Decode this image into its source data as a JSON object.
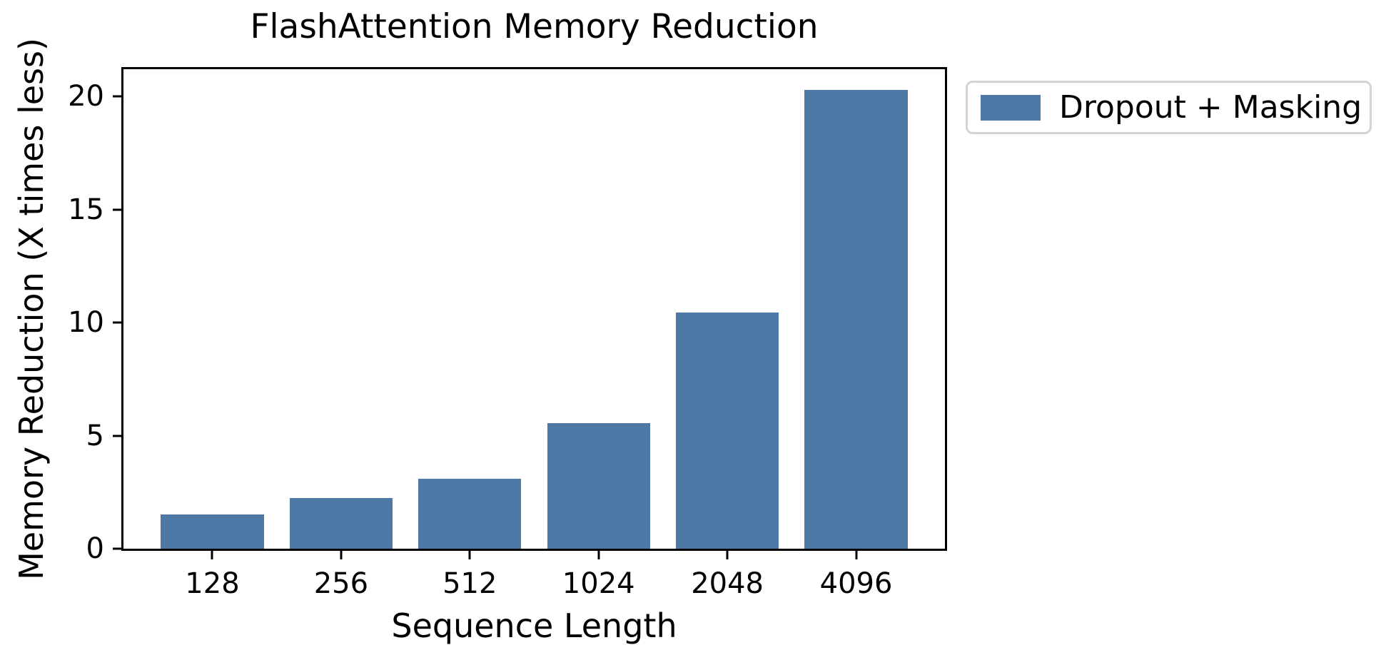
{
  "figure": {
    "background": "#ffffff",
    "text_color": "#000000",
    "axis_color": "#000000",
    "legend_border_color": "#d4d4d4"
  },
  "chart_data": {
    "type": "bar",
    "title": "FlashAttention Memory Reduction",
    "xlabel": "Sequence Length",
    "ylabel": "Memory Reduction (X times less)",
    "categories": [
      "128",
      "256",
      "512",
      "1024",
      "2048",
      "4096"
    ],
    "series": [
      {
        "name": "Dropout + Masking",
        "color": "#4e79a7",
        "values": [
          1.5,
          2.25,
          3.1,
          5.55,
          10.45,
          20.3
        ]
      }
    ],
    "yticks": [
      0,
      5,
      10,
      15,
      20
    ],
    "ylim": [
      0,
      21.2
    ],
    "grid": false,
    "legend_position": "outside-upper-right",
    "bar_width_fraction": 0.8,
    "x_margin_units": 0.69
  }
}
